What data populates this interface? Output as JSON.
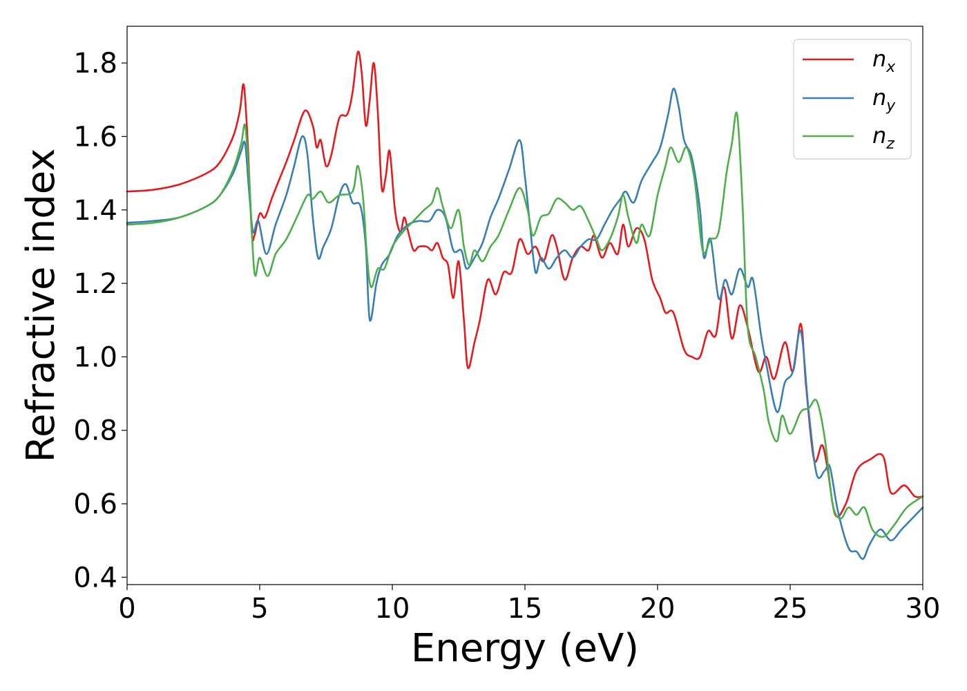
{
  "chart_data": {
    "type": "line",
    "xlabel": "Energy (eV)",
    "ylabel": "Refractive index",
    "xlim": [
      0,
      30
    ],
    "ylim": [
      0.38,
      1.9
    ],
    "xticks": [
      0,
      5,
      10,
      15,
      20,
      25,
      30
    ],
    "xtick_labels": [
      "0",
      "5",
      "10",
      "15",
      "20",
      "25",
      "30"
    ],
    "yticks": [
      0.4,
      0.6,
      0.8,
      1.0,
      1.2,
      1.4,
      1.6,
      1.8
    ],
    "ytick_labels": [
      "0.4",
      "0.6",
      "0.8",
      "1.0",
      "1.2",
      "1.4",
      "1.6",
      "1.8"
    ],
    "grid": false,
    "legend_position": "top-right",
    "series": [
      {
        "name": "n",
        "subscript": "x",
        "color": "#e41a1c",
        "points": [
          [
            0,
            1.45
          ],
          [
            1,
            1.455
          ],
          [
            2,
            1.47
          ],
          [
            3,
            1.5
          ],
          [
            3.5,
            1.53
          ],
          [
            4.0,
            1.6
          ],
          [
            4.25,
            1.67
          ],
          [
            4.4,
            1.74
          ],
          [
            4.55,
            1.58
          ],
          [
            4.7,
            1.34
          ],
          [
            4.8,
            1.33
          ],
          [
            5.0,
            1.39
          ],
          [
            5.2,
            1.38
          ],
          [
            5.5,
            1.44
          ],
          [
            6.0,
            1.53
          ],
          [
            6.3,
            1.59
          ],
          [
            6.7,
            1.67
          ],
          [
            7.0,
            1.63
          ],
          [
            7.15,
            1.57
          ],
          [
            7.3,
            1.59
          ],
          [
            7.5,
            1.52
          ],
          [
            7.7,
            1.55
          ],
          [
            8.0,
            1.65
          ],
          [
            8.3,
            1.66
          ],
          [
            8.5,
            1.72
          ],
          [
            8.7,
            1.83
          ],
          [
            8.85,
            1.77
          ],
          [
            9.0,
            1.63
          ],
          [
            9.15,
            1.7
          ],
          [
            9.3,
            1.8
          ],
          [
            9.45,
            1.67
          ],
          [
            9.6,
            1.46
          ],
          [
            9.75,
            1.49
          ],
          [
            9.9,
            1.56
          ],
          [
            10.1,
            1.4
          ],
          [
            10.3,
            1.34
          ],
          [
            10.45,
            1.38
          ],
          [
            10.6,
            1.34
          ],
          [
            10.8,
            1.29
          ],
          [
            11.0,
            1.3
          ],
          [
            11.3,
            1.3
          ],
          [
            11.5,
            1.29
          ],
          [
            11.7,
            1.31
          ],
          [
            11.9,
            1.27
          ],
          [
            12.1,
            1.25
          ],
          [
            12.3,
            1.16
          ],
          [
            12.5,
            1.26
          ],
          [
            12.7,
            1.1
          ],
          [
            12.85,
            0.97
          ],
          [
            13.1,
            1.04
          ],
          [
            13.3,
            1.1
          ],
          [
            13.6,
            1.21
          ],
          [
            13.9,
            1.17
          ],
          [
            14.2,
            1.23
          ],
          [
            14.5,
            1.23
          ],
          [
            14.8,
            1.32
          ],
          [
            15.1,
            1.28
          ],
          [
            15.4,
            1.3
          ],
          [
            15.7,
            1.26
          ],
          [
            16.0,
            1.33
          ],
          [
            16.2,
            1.3
          ],
          [
            16.5,
            1.21
          ],
          [
            16.8,
            1.27
          ],
          [
            17.1,
            1.3
          ],
          [
            17.4,
            1.29
          ],
          [
            17.6,
            1.33
          ],
          [
            17.9,
            1.27
          ],
          [
            18.2,
            1.31
          ],
          [
            18.5,
            1.28
          ],
          [
            18.7,
            1.36
          ],
          [
            18.9,
            1.3
          ],
          [
            19.2,
            1.35
          ],
          [
            19.5,
            1.32
          ],
          [
            19.8,
            1.21
          ],
          [
            20.1,
            1.16
          ],
          [
            20.3,
            1.12
          ],
          [
            20.6,
            1.12
          ],
          [
            21.0,
            1.02
          ],
          [
            21.3,
            1.0
          ],
          [
            21.6,
            1.0
          ],
          [
            21.9,
            1.07
          ],
          [
            22.2,
            1.06
          ],
          [
            22.5,
            1.19
          ],
          [
            22.8,
            1.05
          ],
          [
            23.1,
            1.14
          ],
          [
            23.4,
            1.08
          ],
          [
            23.8,
            0.96
          ],
          [
            24.1,
            1.0
          ],
          [
            24.4,
            0.94
          ],
          [
            24.8,
            1.04
          ],
          [
            25.1,
            0.96
          ],
          [
            25.4,
            1.09
          ],
          [
            25.6,
            0.92
          ],
          [
            25.9,
            0.72
          ],
          [
            26.2,
            0.76
          ],
          [
            26.4,
            0.7
          ],
          [
            26.7,
            0.57
          ],
          [
            27.1,
            0.6
          ],
          [
            27.5,
            0.69
          ],
          [
            28.0,
            0.72
          ],
          [
            28.5,
            0.73
          ],
          [
            28.8,
            0.63
          ],
          [
            29.3,
            0.65
          ],
          [
            29.7,
            0.62
          ],
          [
            30.0,
            0.62
          ]
        ]
      },
      {
        "name": "n",
        "subscript": "y",
        "color": "#377eb8",
        "points": [
          [
            0,
            1.365
          ],
          [
            1,
            1.37
          ],
          [
            2,
            1.38
          ],
          [
            3,
            1.41
          ],
          [
            3.5,
            1.44
          ],
          [
            4.0,
            1.5
          ],
          [
            4.3,
            1.56
          ],
          [
            4.45,
            1.58
          ],
          [
            4.6,
            1.45
          ],
          [
            4.75,
            1.34
          ],
          [
            4.95,
            1.37
          ],
          [
            5.25,
            1.28
          ],
          [
            5.6,
            1.36
          ],
          [
            6.0,
            1.44
          ],
          [
            6.3,
            1.52
          ],
          [
            6.6,
            1.6
          ],
          [
            6.8,
            1.55
          ],
          [
            7.0,
            1.38
          ],
          [
            7.2,
            1.27
          ],
          [
            7.4,
            1.3
          ],
          [
            7.7,
            1.35
          ],
          [
            8.0,
            1.44
          ],
          [
            8.25,
            1.47
          ],
          [
            8.5,
            1.42
          ],
          [
            8.8,
            1.41
          ],
          [
            9.0,
            1.3
          ],
          [
            9.15,
            1.1
          ],
          [
            9.4,
            1.2
          ],
          [
            9.6,
            1.25
          ],
          [
            9.9,
            1.28
          ],
          [
            10.2,
            1.33
          ],
          [
            10.6,
            1.36
          ],
          [
            11.0,
            1.37
          ],
          [
            11.4,
            1.37
          ],
          [
            11.7,
            1.4
          ],
          [
            12.0,
            1.38
          ],
          [
            12.3,
            1.29
          ],
          [
            12.6,
            1.29
          ],
          [
            12.8,
            1.24
          ],
          [
            13.1,
            1.27
          ],
          [
            13.4,
            1.31
          ],
          [
            13.7,
            1.38
          ],
          [
            14.0,
            1.43
          ],
          [
            14.4,
            1.51
          ],
          [
            14.8,
            1.59
          ],
          [
            15.0,
            1.49
          ],
          [
            15.2,
            1.35
          ],
          [
            15.4,
            1.23
          ],
          [
            15.6,
            1.27
          ],
          [
            15.9,
            1.24
          ],
          [
            16.2,
            1.27
          ],
          [
            16.5,
            1.29
          ],
          [
            16.8,
            1.27
          ],
          [
            17.1,
            1.3
          ],
          [
            17.4,
            1.32
          ],
          [
            17.7,
            1.32
          ],
          [
            18.0,
            1.36
          ],
          [
            18.3,
            1.4
          ],
          [
            18.6,
            1.43
          ],
          [
            18.8,
            1.45
          ],
          [
            19.1,
            1.42
          ],
          [
            19.4,
            1.48
          ],
          [
            19.8,
            1.53
          ],
          [
            20.1,
            1.57
          ],
          [
            20.4,
            1.66
          ],
          [
            20.6,
            1.73
          ],
          [
            20.8,
            1.68
          ],
          [
            21.0,
            1.59
          ],
          [
            21.3,
            1.54
          ],
          [
            21.6,
            1.4
          ],
          [
            21.75,
            1.27
          ],
          [
            22.0,
            1.32
          ],
          [
            22.3,
            1.16
          ],
          [
            22.55,
            1.21
          ],
          [
            22.8,
            1.17
          ],
          [
            23.1,
            1.24
          ],
          [
            23.4,
            1.19
          ],
          [
            23.6,
            1.21
          ],
          [
            23.9,
            1.06
          ],
          [
            24.1,
            0.98
          ],
          [
            24.5,
            0.85
          ],
          [
            24.8,
            0.93
          ],
          [
            25.1,
            0.96
          ],
          [
            25.4,
            1.07
          ],
          [
            25.7,
            0.85
          ],
          [
            26.0,
            0.68
          ],
          [
            26.3,
            0.69
          ],
          [
            26.5,
            0.7
          ],
          [
            26.8,
            0.58
          ],
          [
            27.2,
            0.48
          ],
          [
            27.5,
            0.47
          ],
          [
            27.75,
            0.45
          ],
          [
            28.0,
            0.49
          ],
          [
            28.4,
            0.53
          ],
          [
            28.8,
            0.5
          ],
          [
            29.2,
            0.53
          ],
          [
            29.6,
            0.56
          ],
          [
            30.0,
            0.59
          ]
        ]
      },
      {
        "name": "n",
        "subscript": "z",
        "color": "#4daf4a",
        "points": [
          [
            0,
            1.36
          ],
          [
            1,
            1.365
          ],
          [
            2,
            1.38
          ],
          [
            3,
            1.41
          ],
          [
            3.5,
            1.44
          ],
          [
            4.0,
            1.51
          ],
          [
            4.3,
            1.58
          ],
          [
            4.45,
            1.63
          ],
          [
            4.6,
            1.49
          ],
          [
            4.8,
            1.23
          ],
          [
            5.0,
            1.27
          ],
          [
            5.3,
            1.22
          ],
          [
            5.6,
            1.28
          ],
          [
            6.0,
            1.32
          ],
          [
            6.4,
            1.38
          ],
          [
            6.8,
            1.44
          ],
          [
            7.0,
            1.43
          ],
          [
            7.3,
            1.45
          ],
          [
            7.6,
            1.42
          ],
          [
            8.0,
            1.44
          ],
          [
            8.5,
            1.45
          ],
          [
            8.7,
            1.52
          ],
          [
            8.9,
            1.43
          ],
          [
            9.05,
            1.27
          ],
          [
            9.2,
            1.19
          ],
          [
            9.45,
            1.24
          ],
          [
            9.7,
            1.24
          ],
          [
            10.0,
            1.3
          ],
          [
            10.4,
            1.34
          ],
          [
            10.8,
            1.37
          ],
          [
            11.2,
            1.4
          ],
          [
            11.5,
            1.42
          ],
          [
            11.7,
            1.46
          ],
          [
            11.9,
            1.41
          ],
          [
            12.2,
            1.35
          ],
          [
            12.5,
            1.4
          ],
          [
            12.7,
            1.3
          ],
          [
            12.9,
            1.25
          ],
          [
            13.1,
            1.29
          ],
          [
            13.4,
            1.26
          ],
          [
            13.7,
            1.3
          ],
          [
            14.0,
            1.33
          ],
          [
            14.4,
            1.4
          ],
          [
            14.8,
            1.46
          ],
          [
            15.1,
            1.4
          ],
          [
            15.3,
            1.33
          ],
          [
            15.6,
            1.38
          ],
          [
            15.9,
            1.39
          ],
          [
            16.2,
            1.43
          ],
          [
            16.5,
            1.42
          ],
          [
            16.8,
            1.4
          ],
          [
            17.1,
            1.41
          ],
          [
            17.4,
            1.37
          ],
          [
            17.7,
            1.32
          ],
          [
            17.9,
            1.29
          ],
          [
            18.2,
            1.32
          ],
          [
            18.5,
            1.38
          ],
          [
            18.7,
            1.44
          ],
          [
            18.9,
            1.38
          ],
          [
            19.2,
            1.31
          ],
          [
            19.4,
            1.36
          ],
          [
            19.7,
            1.33
          ],
          [
            20.0,
            1.44
          ],
          [
            20.3,
            1.52
          ],
          [
            20.5,
            1.57
          ],
          [
            20.8,
            1.53
          ],
          [
            21.1,
            1.57
          ],
          [
            21.4,
            1.48
          ],
          [
            21.7,
            1.29
          ],
          [
            22.0,
            1.32
          ],
          [
            22.3,
            1.34
          ],
          [
            22.6,
            1.5
          ],
          [
            22.8,
            1.58
          ],
          [
            23.0,
            1.66
          ],
          [
            23.2,
            1.42
          ],
          [
            23.4,
            1.08
          ],
          [
            23.7,
            1.0
          ],
          [
            24.0,
            0.91
          ],
          [
            24.2,
            0.82
          ],
          [
            24.5,
            0.77
          ],
          [
            24.7,
            0.84
          ],
          [
            25.0,
            0.79
          ],
          [
            25.4,
            0.85
          ],
          [
            25.7,
            0.86
          ],
          [
            26.0,
            0.88
          ],
          [
            26.3,
            0.78
          ],
          [
            26.6,
            0.6
          ],
          [
            26.9,
            0.56
          ],
          [
            27.2,
            0.59
          ],
          [
            27.5,
            0.57
          ],
          [
            27.8,
            0.59
          ],
          [
            28.1,
            0.53
          ],
          [
            28.5,
            0.51
          ],
          [
            28.9,
            0.54
          ],
          [
            29.4,
            0.59
          ],
          [
            30.0,
            0.62
          ]
        ]
      }
    ]
  }
}
